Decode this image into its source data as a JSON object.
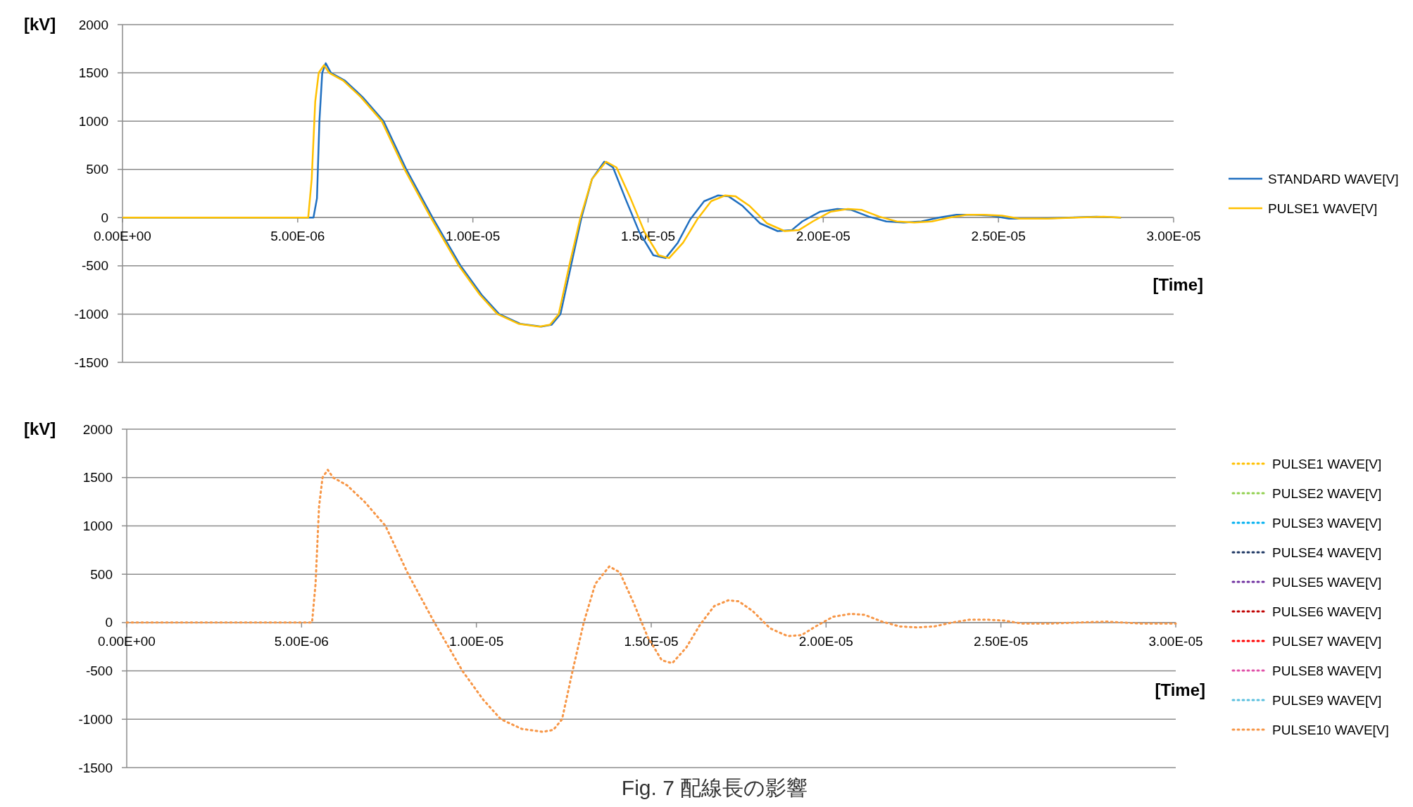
{
  "chart_data": [
    {
      "type": "line",
      "ylabel": "[kV]",
      "xlabel": "[Time]",
      "xlim": [
        0,
        3e-05
      ],
      "ylim": [
        -1500,
        2000
      ],
      "xticks": [
        {
          "value": 0,
          "label": "0.00E+00"
        },
        {
          "value": 5e-06,
          "label": "5.00E-06"
        },
        {
          "value": 1e-05,
          "label": "1.00E-05"
        },
        {
          "value": 1.5e-05,
          "label": "1.50E-05"
        },
        {
          "value": 2e-05,
          "label": "2.00E-05"
        },
        {
          "value": 2.5e-05,
          "label": "2.50E-05"
        },
        {
          "value": 3e-05,
          "label": "3.00E-05"
        }
      ],
      "yticks": [
        -1500,
        -1000,
        -500,
        0,
        500,
        1000,
        1500,
        2000
      ],
      "grid": "y",
      "legend": "right",
      "line_style": "solid",
      "marker": "none",
      "series": [
        {
          "name": "STANDARD WAVE[V]",
          "color": "#1f6fc0",
          "x": [
            0,
            5.45e-06,
            5.55e-06,
            5.62e-06,
            5.7e-06,
            5.8e-06,
            5.95e-06,
            6.35e-06,
            6.85e-06,
            7.45e-06,
            8.1e-06,
            8.85e-06,
            9.65e-06,
            1.025e-05,
            1.075e-05,
            1.135e-05,
            1.195e-05,
            1.225e-05,
            1.25e-05,
            1.28e-05,
            1.31e-05,
            1.34e-05,
            1.375e-05,
            1.4e-05,
            1.435e-05,
            1.475e-05,
            1.515e-05,
            1.55e-05,
            1.585e-05,
            1.62e-05,
            1.66e-05,
            1.7e-05,
            1.73e-05,
            1.77e-05,
            1.82e-05,
            1.87e-05,
            1.91e-05,
            1.94e-05,
            1.99e-05,
            2.04e-05,
            2.08e-05,
            2.13e-05,
            2.18e-05,
            2.23e-05,
            2.28e-05,
            2.33e-05,
            2.38e-05,
            2.43e-05,
            2.48e-05,
            2.53e-05,
            2.61e-05,
            2.7e-05,
            2.78e-05,
            2.85e-05
          ],
          "values": [
            0,
            0,
            200,
            1000,
            1500,
            1600,
            1500,
            1420,
            1250,
            1000,
            500,
            0,
            -500,
            -800,
            -1000,
            -1100,
            -1130,
            -1110,
            -1000,
            -500,
            0,
            400,
            580,
            520,
            200,
            -150,
            -390,
            -420,
            -260,
            -20,
            170,
            230,
            220,
            120,
            -60,
            -140,
            -130,
            -40,
            60,
            90,
            80,
            10,
            -40,
            -50,
            -40,
            0,
            30,
            30,
            20,
            -10,
            -10,
            0,
            10,
            0
          ]
        },
        {
          "name": "PULSE1 WAVE[V]",
          "color": "#ffc000",
          "x": [
            0,
            5.3e-06,
            5.4e-06,
            5.5e-06,
            5.6e-06,
            5.75e-06,
            5.9e-06,
            6.3e-06,
            6.8e-06,
            7.4e-06,
            8.05e-06,
            8.8e-06,
            9.6e-06,
            1.02e-05,
            1.07e-05,
            1.13e-05,
            1.19e-05,
            1.22e-05,
            1.245e-05,
            1.275e-05,
            1.307e-05,
            1.34e-05,
            1.38e-05,
            1.41e-05,
            1.45e-05,
            1.49e-05,
            1.53e-05,
            1.56e-05,
            1.6e-05,
            1.64e-05,
            1.68e-05,
            1.72e-05,
            1.75e-05,
            1.79e-05,
            1.84e-05,
            1.89e-05,
            1.93e-05,
            1.97e-05,
            2.02e-05,
            2.07e-05,
            2.11e-05,
            2.16e-05,
            2.21e-05,
            2.26e-05,
            2.31e-05,
            2.36e-05,
            2.41e-05,
            2.46e-05,
            2.51e-05,
            2.56e-05,
            2.64e-05,
            2.72e-05,
            2.8e-05,
            2.85e-05
          ],
          "values": [
            0,
            0,
            400,
            1200,
            1500,
            1580,
            1500,
            1420,
            1250,
            1000,
            500,
            0,
            -500,
            -800,
            -1000,
            -1100,
            -1130,
            -1110,
            -1000,
            -500,
            0,
            400,
            580,
            520,
            200,
            -150,
            -390,
            -420,
            -260,
            -20,
            170,
            230,
            220,
            120,
            -60,
            -140,
            -130,
            -40,
            60,
            90,
            80,
            10,
            -40,
            -50,
            -40,
            0,
            30,
            30,
            20,
            -10,
            -10,
            0,
            10,
            0
          ]
        }
      ]
    },
    {
      "type": "line",
      "ylabel": "[kV]",
      "xlabel": "[Time]",
      "xlim": [
        0,
        3e-05
      ],
      "ylim": [
        -1500,
        2000
      ],
      "xticks": [
        {
          "value": 0,
          "label": "0.00E+00"
        },
        {
          "value": 5e-06,
          "label": "5.00E-06"
        },
        {
          "value": 1e-05,
          "label": "1.00E-05"
        },
        {
          "value": 1.5e-05,
          "label": "1.50E-05"
        },
        {
          "value": 2e-05,
          "label": "2.00E-05"
        },
        {
          "value": 2.5e-05,
          "label": "2.50E-05"
        },
        {
          "value": 3e-05,
          "label": "3.00E-05"
        }
      ],
      "yticks": [
        -1500,
        -1000,
        -500,
        0,
        500,
        1000,
        1500,
        2000
      ],
      "grid": "y",
      "legend": "right",
      "line_style": "dotted",
      "marker": "none",
      "annotations": [
        "Fig. 7  配線長の影響"
      ],
      "x": [
        0,
        5.3e-06,
        5.4e-06,
        5.5e-06,
        5.6e-06,
        5.75e-06,
        5.9e-06,
        6.3e-06,
        6.8e-06,
        7.4e-06,
        8.05e-06,
        8.8e-06,
        9.6e-06,
        1.02e-05,
        1.07e-05,
        1.13e-05,
        1.19e-05,
        1.22e-05,
        1.245e-05,
        1.275e-05,
        1.307e-05,
        1.34e-05,
        1.38e-05,
        1.41e-05,
        1.45e-05,
        1.49e-05,
        1.53e-05,
        1.56e-05,
        1.6e-05,
        1.64e-05,
        1.68e-05,
        1.72e-05,
        1.75e-05,
        1.79e-05,
        1.84e-05,
        1.89e-05,
        1.93e-05,
        1.97e-05,
        2.02e-05,
        2.07e-05,
        2.11e-05,
        2.16e-05,
        2.21e-05,
        2.26e-05,
        2.31e-05,
        2.36e-05,
        2.41e-05,
        2.46e-05,
        2.51e-05,
        2.56e-05,
        2.64e-05,
        2.72e-05,
        2.8e-05,
        2.9e-05,
        3e-05
      ],
      "series": [
        {
          "name": "PULSE1 WAVE[V]",
          "color": "#ffc000",
          "values": [
            null,
            null,
            null,
            null,
            null,
            null,
            null,
            null,
            null,
            null,
            null,
            null,
            null,
            null,
            null,
            null,
            null,
            null,
            null,
            null,
            null,
            null,
            null,
            null,
            null,
            null,
            null,
            null,
            null,
            null,
            null,
            null,
            null,
            null,
            null,
            null,
            null,
            null,
            null,
            null,
            null,
            null,
            null,
            null,
            null,
            null,
            null,
            null,
            null,
            null,
            null,
            null,
            null,
            null,
            null
          ]
        },
        {
          "name": "PULSE2 WAVE[V]",
          "color": "#92d050",
          "values": [
            null,
            null,
            null,
            null,
            null,
            null,
            null,
            null,
            null,
            null,
            null,
            null,
            null,
            null,
            null,
            null,
            null,
            null,
            null,
            null,
            null,
            null,
            null,
            null,
            null,
            null,
            null,
            null,
            null,
            null,
            null,
            null,
            null,
            null,
            null,
            null,
            null,
            null,
            null,
            null,
            null,
            null,
            null,
            null,
            null,
            null,
            null,
            null,
            null,
            null,
            null,
            null,
            null,
            null,
            null
          ]
        },
        {
          "name": "PULSE3 WAVE[V]",
          "color": "#00b0f0",
          "values": [
            null,
            null,
            null,
            null,
            null,
            null,
            null,
            null,
            null,
            null,
            null,
            null,
            null,
            null,
            null,
            null,
            null,
            null,
            null,
            null,
            null,
            null,
            null,
            null,
            null,
            null,
            null,
            null,
            null,
            null,
            null,
            null,
            null,
            null,
            null,
            null,
            null,
            null,
            null,
            null,
            null,
            null,
            null,
            null,
            null,
            null,
            null,
            null,
            null,
            null,
            null,
            null,
            null,
            null,
            null
          ]
        },
        {
          "name": "PULSE4 WAVE[V]",
          "color": "#1f3864",
          "values": [
            null,
            null,
            null,
            null,
            null,
            null,
            null,
            null,
            null,
            null,
            null,
            null,
            null,
            null,
            null,
            null,
            null,
            null,
            null,
            null,
            null,
            null,
            null,
            null,
            null,
            null,
            null,
            null,
            null,
            null,
            null,
            null,
            null,
            null,
            null,
            null,
            null,
            null,
            null,
            null,
            null,
            null,
            null,
            null,
            null,
            null,
            null,
            null,
            null,
            null,
            null,
            null,
            null,
            null,
            null
          ]
        },
        {
          "name": "PULSE5 WAVE[V]",
          "color": "#7030a0",
          "values": [
            null,
            null,
            null,
            null,
            null,
            null,
            null,
            null,
            null,
            null,
            null,
            null,
            null,
            null,
            null,
            null,
            null,
            null,
            null,
            null,
            null,
            null,
            null,
            null,
            null,
            null,
            null,
            null,
            null,
            null,
            null,
            null,
            null,
            null,
            null,
            null,
            null,
            null,
            null,
            null,
            null,
            null,
            null,
            null,
            null,
            null,
            null,
            null,
            null,
            null,
            null,
            null,
            null,
            null,
            null
          ]
        },
        {
          "name": "PULSE6 WAVE[V]",
          "color": "#c00000",
          "values": [
            null,
            null,
            null,
            null,
            null,
            null,
            null,
            null,
            null,
            null,
            null,
            null,
            null,
            null,
            null,
            null,
            null,
            null,
            null,
            null,
            null,
            null,
            null,
            null,
            null,
            null,
            null,
            null,
            null,
            null,
            null,
            null,
            null,
            null,
            null,
            null,
            null,
            null,
            null,
            null,
            null,
            null,
            null,
            null,
            null,
            null,
            null,
            null,
            null,
            null,
            null,
            null,
            null,
            null,
            null
          ]
        },
        {
          "name": "PULSE7 WAVE[V]",
          "color": "#ff0000",
          "values": [
            null,
            null,
            null,
            null,
            null,
            null,
            null,
            null,
            null,
            null,
            null,
            null,
            null,
            null,
            null,
            null,
            null,
            null,
            null,
            null,
            null,
            null,
            null,
            null,
            null,
            null,
            null,
            null,
            null,
            null,
            null,
            null,
            null,
            null,
            null,
            null,
            null,
            null,
            null,
            null,
            null,
            null,
            null,
            null,
            null,
            null,
            null,
            null,
            null,
            null,
            null,
            null,
            null,
            null,
            null
          ]
        },
        {
          "name": "PULSE8 WAVE[V]",
          "color": "#e052a8",
          "values": [
            null,
            null,
            null,
            null,
            null,
            null,
            null,
            null,
            null,
            null,
            null,
            null,
            null,
            null,
            null,
            null,
            null,
            null,
            null,
            null,
            null,
            null,
            null,
            null,
            null,
            null,
            null,
            null,
            null,
            null,
            null,
            null,
            null,
            null,
            null,
            null,
            null,
            null,
            null,
            null,
            null,
            null,
            null,
            null,
            null,
            null,
            null,
            null,
            null,
            null,
            null,
            null,
            null,
            null,
            null
          ]
        },
        {
          "name": "PULSE9 WAVE[V]",
          "color": "#5bc0de",
          "values": [
            null,
            null,
            null,
            null,
            null,
            null,
            null,
            null,
            null,
            null,
            null,
            null,
            null,
            null,
            null,
            null,
            null,
            null,
            null,
            null,
            null,
            null,
            null,
            null,
            null,
            null,
            null,
            null,
            null,
            null,
            null,
            null,
            null,
            null,
            null,
            null,
            null,
            null,
            null,
            null,
            null,
            null,
            null,
            null,
            null,
            null,
            null,
            null,
            null,
            null,
            null,
            null,
            null,
            null,
            null
          ]
        },
        {
          "name": "PULSE10 WAVE[V]",
          "color": "#f79646",
          "values": [
            0,
            0,
            400,
            1200,
            1500,
            1580,
            1500,
            1420,
            1250,
            1000,
            500,
            0,
            -500,
            -800,
            -1000,
            -1100,
            -1130,
            -1110,
            -1000,
            -500,
            0,
            400,
            580,
            520,
            200,
            -150,
            -390,
            -420,
            -260,
            -20,
            170,
            230,
            220,
            120,
            -60,
            -140,
            -130,
            -40,
            60,
            90,
            80,
            10,
            -40,
            -50,
            -40,
            0,
            30,
            30,
            20,
            -10,
            -10,
            0,
            10,
            -10,
            -10
          ]
        }
      ]
    }
  ]
}
